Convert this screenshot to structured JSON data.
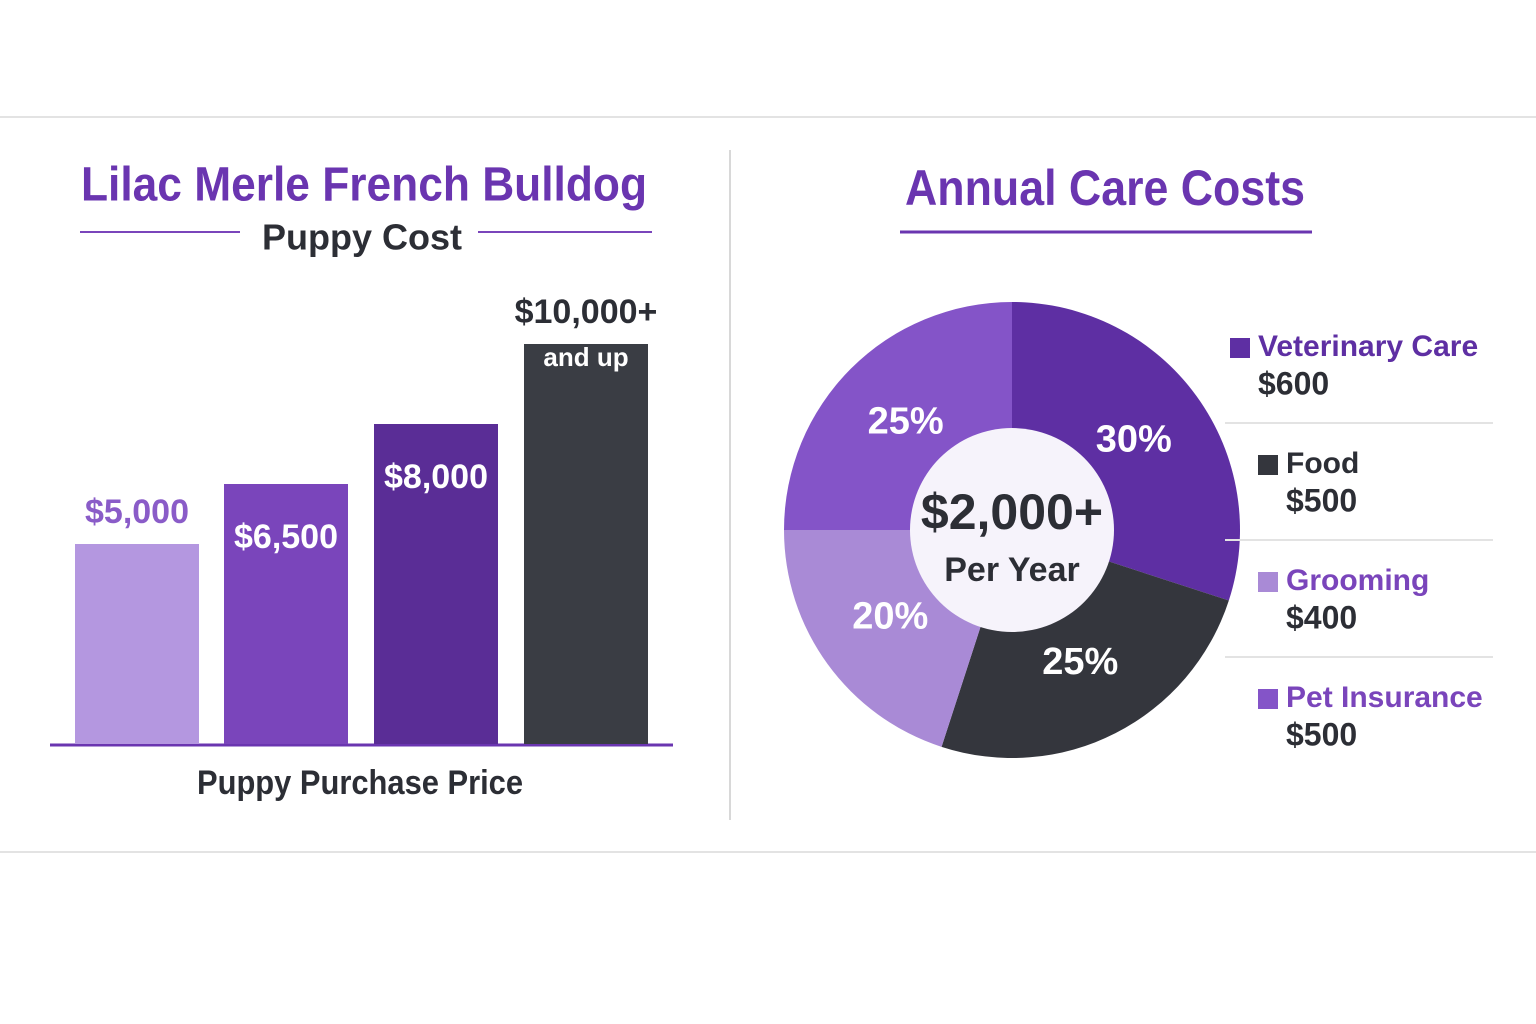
{
  "chart_data": [
    {
      "type": "bar",
      "title": "Lilac Merle French Bulldog",
      "subtitle": "Puppy Cost",
      "x_label": "Puppy Purchase Price",
      "categories": [
        null,
        null,
        null,
        null
      ],
      "values": [
        5000,
        6500,
        8000,
        10000
      ],
      "value_labels": [
        "$5,000",
        "$6,500",
        "$8,000",
        "$10,000+"
      ],
      "annotation": "and up",
      "colors": [
        "#b497e0",
        "#7a45bb",
        "#5a2d96",
        "#3a3d44"
      ]
    },
    {
      "type": "pie",
      "title": "Annual Care Costs",
      "center_label": "$2,000+",
      "center_sublabel": "Per Year",
      "categories": [
        "Veterinary Care",
        "Food",
        "Grooming",
        "Pet Insurance"
      ],
      "values": [
        30,
        25,
        20,
        25
      ],
      "value_labels": [
        "30%",
        "25%",
        "20%",
        "25%"
      ],
      "legend_values": [
        "$600",
        "$500",
        "$400",
        "$500"
      ],
      "colors": [
        "#5e2fa3",
        "#34363d",
        "#a98ad6",
        "#8454c8"
      ]
    }
  ]
}
